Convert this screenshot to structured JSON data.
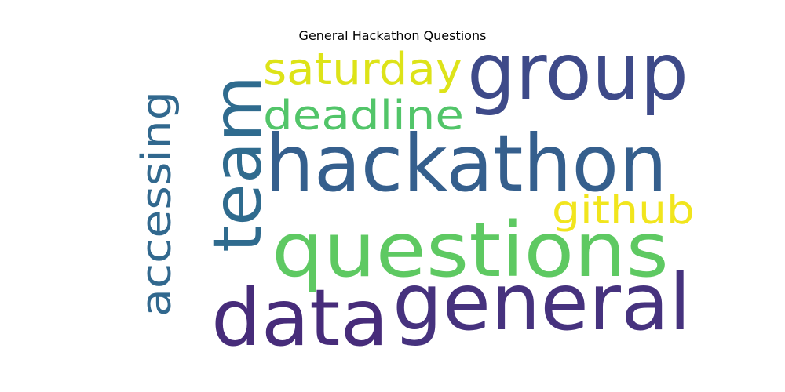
{
  "title": "General Hackathon Questions",
  "words": [
    {
      "text": "hackathon",
      "color": "#355f8d"
    },
    {
      "text": "questions",
      "color": "#5ec962"
    },
    {
      "text": "general",
      "color": "#46327e"
    },
    {
      "text": "group",
      "color": "#3e4a89"
    },
    {
      "text": "data",
      "color": "#472c7a"
    },
    {
      "text": "team",
      "color": "#2f6b8e"
    },
    {
      "text": "saturday",
      "color": "#dde318"
    },
    {
      "text": "deadline",
      "color": "#52c569"
    },
    {
      "text": "accessing",
      "color": "#31688e"
    },
    {
      "text": "github",
      "color": "#f1e51d"
    }
  ]
}
